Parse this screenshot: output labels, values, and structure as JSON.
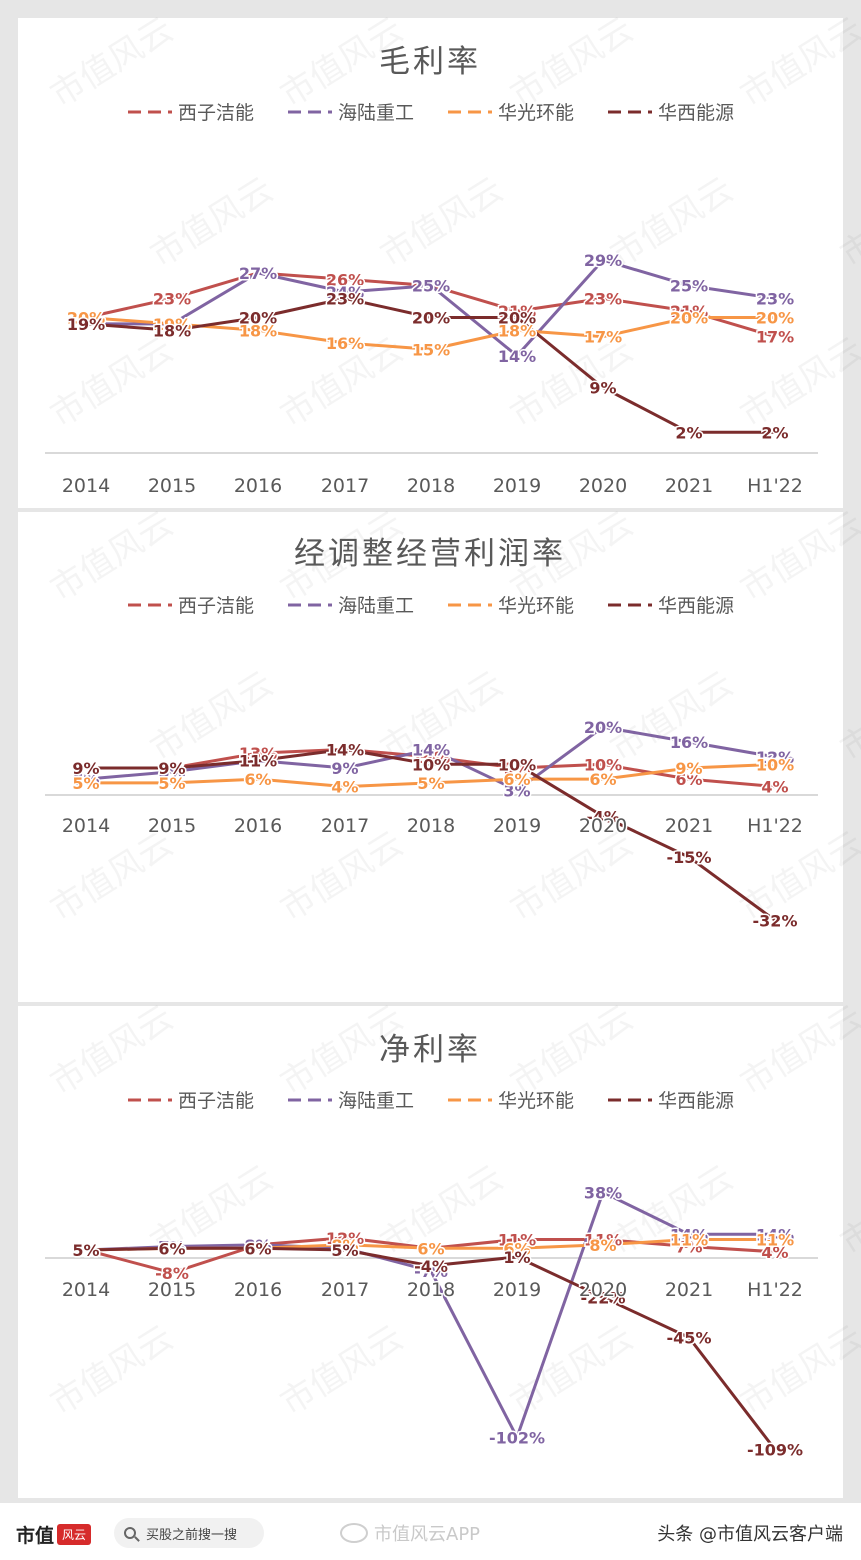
{
  "legend": [
    {
      "name": "西子洁能",
      "color": "#c0504d"
    },
    {
      "name": "海陆重工",
      "color": "#8064a2"
    },
    {
      "name": "华光环能",
      "color": "#f79646"
    },
    {
      "name": "华西能源",
      "color": "#7b2c2c"
    }
  ],
  "watermark": "市值风云",
  "chart_data": [
    {
      "type": "line",
      "title": "毛利率",
      "categories": [
        "2014",
        "2015",
        "2016",
        "2017",
        "2018",
        "2019",
        "2020",
        "2021",
        "H1'22"
      ],
      "ylim": [
        0,
        40
      ],
      "series": [
        {
          "name": "西子洁能",
          "values": [
            20,
            23,
            27,
            26,
            25,
            21,
            23,
            21,
            17
          ]
        },
        {
          "name": "海陆重工",
          "values": [
            19,
            19,
            27,
            24,
            25,
            14,
            29,
            25,
            23
          ]
        },
        {
          "name": "华光环能",
          "values": [
            20,
            19,
            18,
            16,
            15,
            18,
            17,
            20,
            20
          ]
        },
        {
          "name": "华西能源",
          "values": [
            19,
            18,
            20,
            23,
            20,
            20,
            9,
            2,
            2
          ]
        }
      ]
    },
    {
      "type": "line",
      "title": "经调整经营利润率",
      "categories": [
        "2014",
        "2015",
        "2016",
        "2017",
        "2018",
        "2019",
        "2020",
        "2021",
        "H1'22"
      ],
      "ylim": [
        -40,
        30
      ],
      "series": [
        {
          "name": "西子洁能",
          "values": [
            9,
            9,
            13,
            14,
            12,
            9,
            10,
            6,
            4
          ]
        },
        {
          "name": "海陆重工",
          "values": [
            6,
            8,
            11,
            9,
            14,
            3,
            20,
            16,
            12
          ]
        },
        {
          "name": "华光环能",
          "values": [
            5,
            5,
            6,
            4,
            5,
            6,
            6,
            9,
            10
          ]
        },
        {
          "name": "华西能源",
          "values": [
            9,
            9,
            11,
            14,
            10,
            10,
            -4,
            -15,
            -32
          ]
        }
      ]
    },
    {
      "type": "line",
      "title": "净利率",
      "categories": [
        "2014",
        "2015",
        "2016",
        "2017",
        "2018",
        "2019",
        "2020",
        "2021",
        "H1'22"
      ],
      "ylim": [
        -115,
        45
      ],
      "series": [
        {
          "name": "西子洁能",
          "values": [
            5,
            -8,
            8,
            12,
            6,
            11,
            11,
            7,
            4
          ]
        },
        {
          "name": "海陆重工",
          "values": [
            5,
            7,
            8,
            6,
            -7,
            -102,
            38,
            14,
            14
          ]
        },
        {
          "name": "华光环能",
          "values": [
            5,
            6,
            6,
            8,
            6,
            6,
            8,
            11,
            11
          ]
        },
        {
          "name": "华西能源",
          "values": [
            5,
            6,
            6,
            5,
            -4,
            1,
            -22,
            -45,
            -109
          ]
        }
      ]
    }
  ],
  "footer": {
    "brand": "市值",
    "brand_seal": "风云",
    "search": "买股之前搜一搜",
    "weibo": "市值风云APP",
    "source": "头条 @市值风云客户端"
  }
}
